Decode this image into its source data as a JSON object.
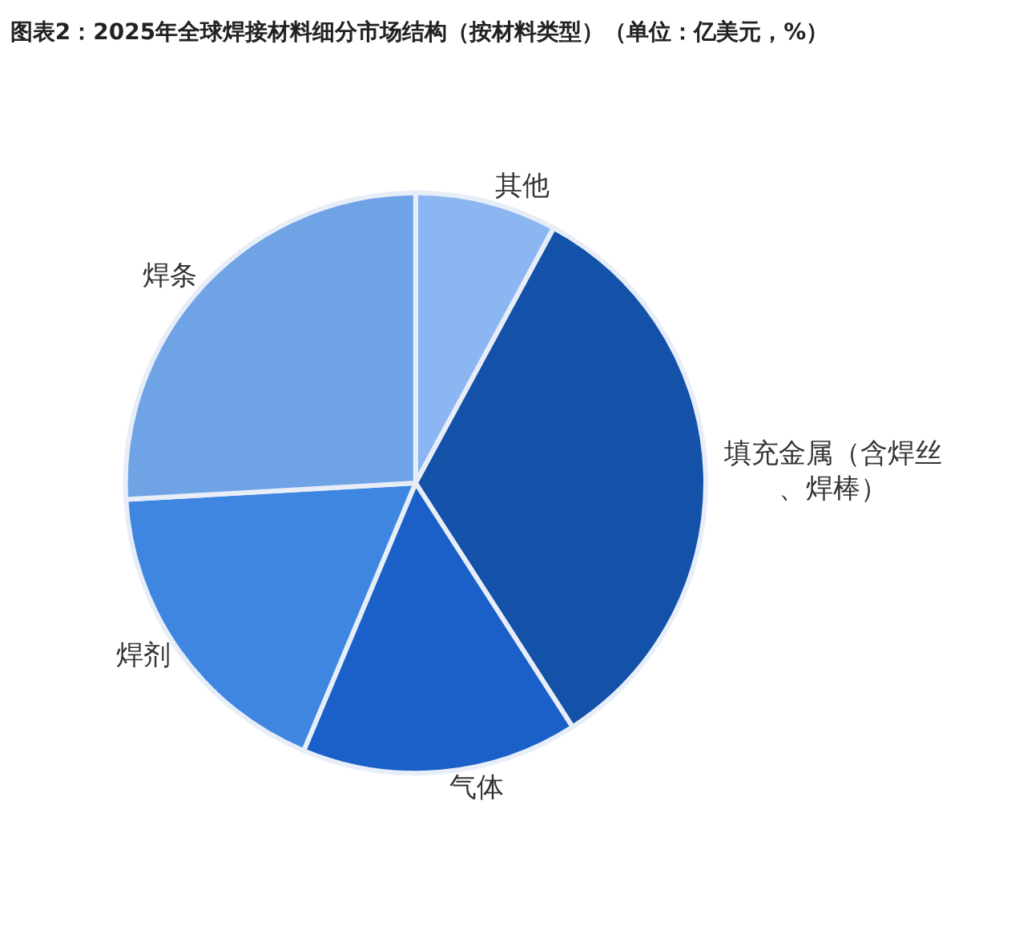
{
  "chart_data": {
    "type": "pie",
    "title": "图表2：2025年全球焊接材料细分市场结构（按材料类型）（单位：亿美元，%）",
    "categories": [
      "其他",
      "填充金属（含焊丝、焊棒）",
      "气体",
      "焊剂",
      "焊条"
    ],
    "values": [
      7.9,
      33.0,
      15.4,
      17.8,
      25.9
    ],
    "colors": [
      "#8cb6f2",
      "#1451a8",
      "#1a60c8",
      "#3f86e0",
      "#6fa3e6"
    ],
    "legend": false
  }
}
